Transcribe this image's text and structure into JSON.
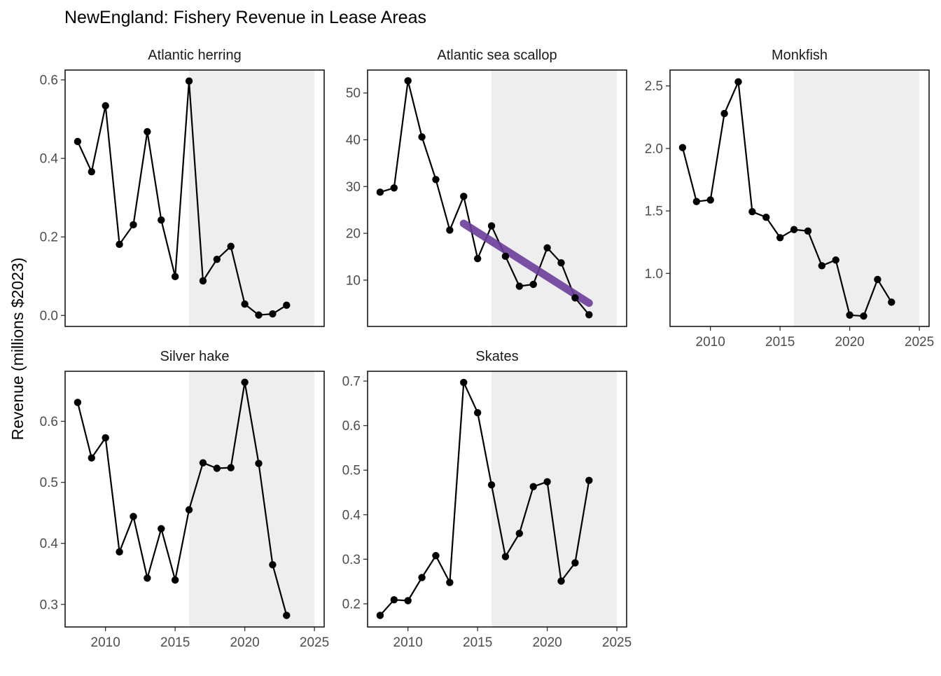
{
  "chart_data": {
    "type": "line",
    "title": "NewEngland: Fishery Revenue in Lease Areas",
    "ylabel": "Revenue (millions $2023)",
    "xlabel": "",
    "shaded_period": [
      2016,
      2025
    ],
    "colors": {
      "line": "#000000",
      "shade": "#eeeeee",
      "trend": "#6a3d9a"
    },
    "panels": [
      {
        "name": "Atlantic herring",
        "x": [
          2008,
          2009,
          2010,
          2011,
          2012,
          2013,
          2014,
          2015,
          2016,
          2017,
          2018,
          2019,
          2020,
          2021,
          2022,
          2023
        ],
        "y": [
          0.443,
          0.366,
          0.534,
          0.181,
          0.231,
          0.468,
          0.243,
          0.099,
          0.597,
          0.088,
          0.143,
          0.176,
          0.029,
          0.001,
          0.004,
          0.026
        ],
        "ylim": [
          -0.028,
          0.625
        ],
        "yticks": [
          "0.0",
          "0.2",
          "0.4",
          "0.6"
        ],
        "xticks": [],
        "trend": null
      },
      {
        "name": "Atlantic sea scallop",
        "x": [
          2008,
          2009,
          2010,
          2011,
          2012,
          2013,
          2014,
          2015,
          2016,
          2017,
          2018,
          2019,
          2020,
          2021,
          2022,
          2023
        ],
        "y": [
          28.8,
          29.7,
          52.6,
          40.6,
          31.5,
          20.7,
          27.9,
          14.6,
          21.6,
          15.1,
          8.7,
          9.1,
          16.9,
          13.7,
          6.2,
          2.6
        ],
        "ylim": [
          0.1,
          54.9
        ],
        "yticks": [
          "10",
          "20",
          "30",
          "40",
          "50"
        ],
        "xticks": [],
        "trend": {
          "x": [
            2014,
            2023
          ],
          "y": [
            22.1,
            5.1
          ]
        }
      },
      {
        "name": "Monkfish",
        "x": [
          2008,
          2009,
          2010,
          2011,
          2012,
          2013,
          2014,
          2015,
          2016,
          2017,
          2018,
          2019,
          2020,
          2021,
          2022,
          2023
        ],
        "y": [
          2.007,
          1.575,
          1.588,
          2.279,
          2.533,
          1.494,
          1.449,
          1.286,
          1.351,
          1.339,
          1.062,
          1.107,
          0.667,
          0.659,
          0.952,
          0.77
        ],
        "ylim": [
          0.576,
          2.627
        ],
        "yticks": [
          "1.0",
          "1.5",
          "2.0",
          "2.5"
        ],
        "xticks": [
          "2010",
          "2015",
          "2020",
          "2025"
        ],
        "trend": null
      },
      {
        "name": "Silver hake",
        "x": [
          2008,
          2009,
          2010,
          2011,
          2012,
          2013,
          2014,
          2015,
          2016,
          2017,
          2018,
          2019,
          2020,
          2021,
          2022,
          2023
        ],
        "y": [
          0.631,
          0.54,
          0.573,
          0.386,
          0.444,
          0.343,
          0.424,
          0.34,
          0.455,
          0.532,
          0.523,
          0.524,
          0.664,
          0.531,
          0.365,
          0.282
        ],
        "ylim": [
          0.263,
          0.682
        ],
        "yticks": [
          "0.3",
          "0.4",
          "0.5",
          "0.6"
        ],
        "xticks": [
          "2010",
          "2015",
          "2020",
          "2025"
        ],
        "trend": null
      },
      {
        "name": "Skates",
        "x": [
          2008,
          2009,
          2010,
          2011,
          2012,
          2013,
          2014,
          2015,
          2016,
          2017,
          2018,
          2019,
          2020,
          2021,
          2022,
          2023
        ],
        "y": [
          0.174,
          0.209,
          0.207,
          0.259,
          0.308,
          0.248,
          0.697,
          0.629,
          0.467,
          0.306,
          0.358,
          0.463,
          0.474,
          0.251,
          0.292,
          0.477
        ],
        "ylim": [
          0.148,
          0.722
        ],
        "yticks": [
          "0.2",
          "0.3",
          "0.4",
          "0.5",
          "0.6",
          "0.7"
        ],
        "xticks": [
          "2010",
          "2015",
          "2020",
          "2025"
        ],
        "trend": null
      }
    ],
    "xlim": [
      2007.1,
      2025.7
    ],
    "grid": false,
    "legend": "none"
  }
}
